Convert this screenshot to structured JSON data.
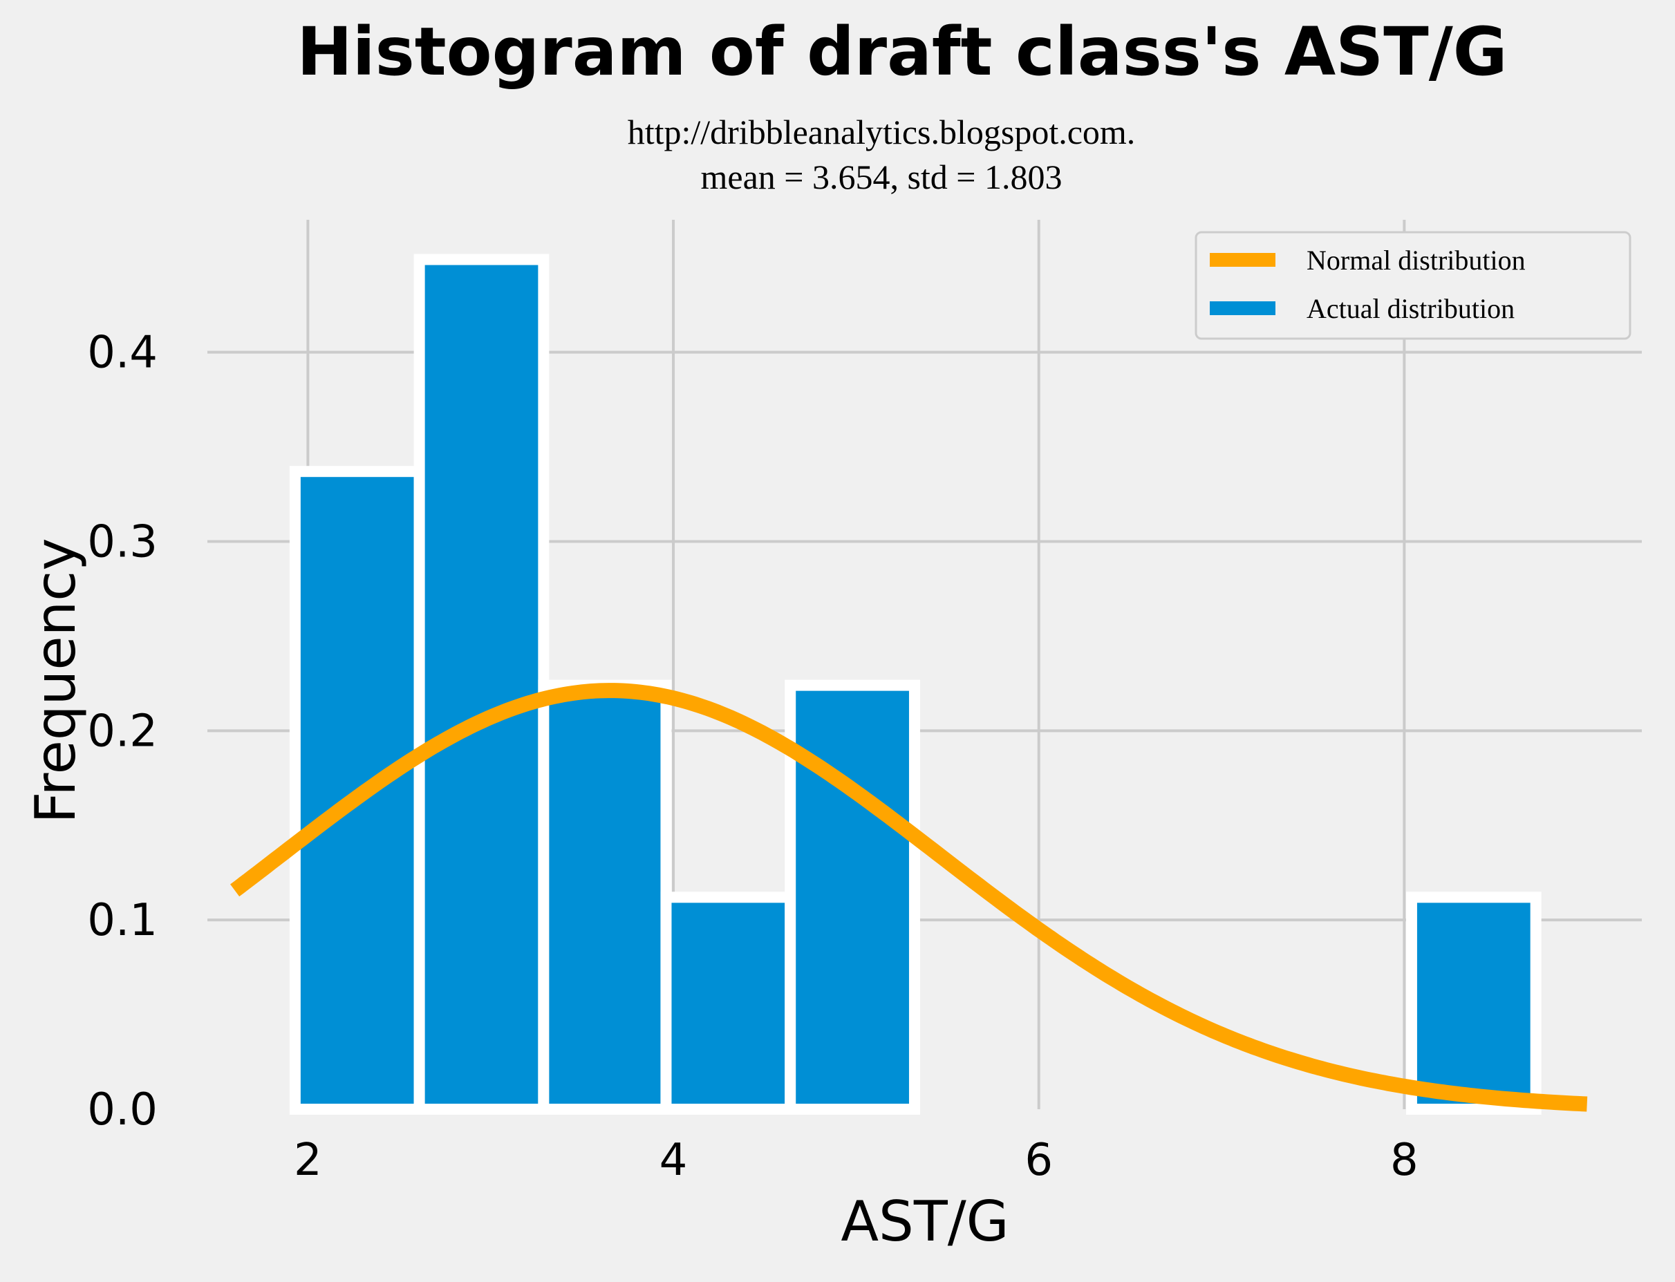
{
  "chart_data": {
    "type": "bar",
    "title": "Histogram of draft class's AST/G",
    "subtitle": "http://dribbleanalytics.blogspot.com.",
    "stats_line": "mean = 3.654, std = 1.803",
    "xlabel": "AST/G",
    "ylabel": "Frequency",
    "xlim": [
      1.45,
      9.3
    ],
    "ylim": [
      0,
      0.47
    ],
    "xticks": [
      2,
      4,
      6,
      8
    ],
    "yticks": [
      0.0,
      0.1,
      0.2,
      0.3,
      0.4
    ],
    "grid": true,
    "legend_position": "top-right",
    "bins": [
      {
        "x0": 1.93,
        "x1": 2.61,
        "value": 0.337
      },
      {
        "x0": 2.61,
        "x1": 3.29,
        "value": 0.449
      },
      {
        "x0": 3.29,
        "x1": 3.96,
        "value": 0.224
      },
      {
        "x0": 3.96,
        "x1": 4.64,
        "value": 0.112
      },
      {
        "x0": 4.64,
        "x1": 5.32,
        "value": 0.224
      },
      {
        "x0": 8.04,
        "x1": 8.72,
        "value": 0.112
      }
    ],
    "normal_curve": {
      "mean": 3.654,
      "std": 1.803,
      "x_start": 1.6,
      "x_end": 9.0
    },
    "series": [
      {
        "name": "Normal distribution",
        "color": "#ffa500"
      },
      {
        "name": "Actual distribution",
        "color": "#008fd5"
      }
    ]
  }
}
